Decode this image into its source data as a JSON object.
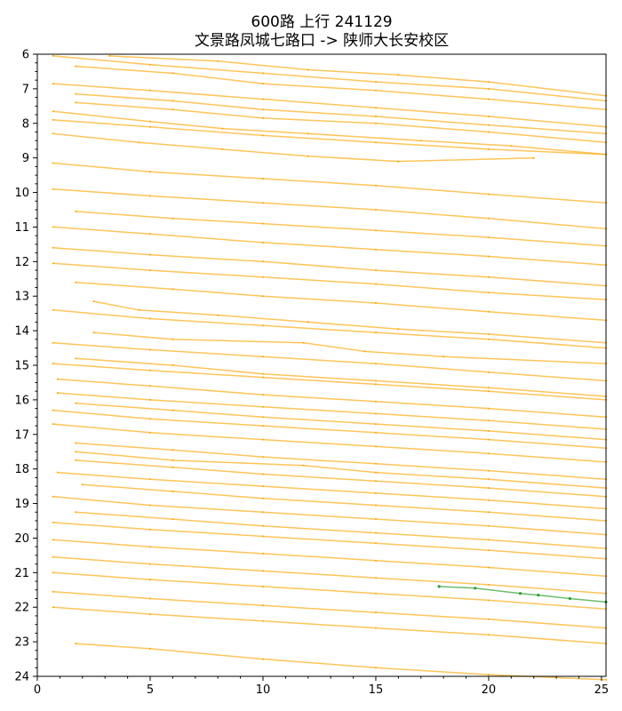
{
  "chart_data": {
    "type": "line",
    "title": "600路 上行 241129",
    "subtitle": "文景路凤城七路口 -> 陕师大长安校区",
    "xlabel": "",
    "ylabel": "",
    "xlim": [
      0,
      25.2
    ],
    "ylim": [
      24,
      6
    ],
    "y_inverted": true,
    "grid": false,
    "legend": "none",
    "x_ticks": [
      0,
      5,
      10,
      15,
      20,
      25
    ],
    "y_ticks": [
      6,
      7,
      8,
      9,
      10,
      11,
      12,
      13,
      14,
      15,
      16,
      17,
      18,
      19,
      20,
      21,
      22,
      23,
      24
    ],
    "colors": {
      "trips": "#ffa500",
      "highlight": "#2ca02c"
    },
    "series": [
      {
        "values": [
          [
            0.7,
            6.05
          ],
          [
            5,
            6.3
          ],
          [
            10,
            6.55
          ],
          [
            15,
            6.8
          ],
          [
            20,
            7.0
          ],
          [
            25.2,
            7.35
          ]
        ]
      },
      {
        "values": [
          [
            3.2,
            6.05
          ],
          [
            8,
            6.2
          ],
          [
            12,
            6.45
          ],
          [
            16,
            6.6
          ],
          [
            20,
            6.8
          ],
          [
            25.2,
            7.2
          ]
        ]
      },
      {
        "values": [
          [
            1.7,
            6.35
          ],
          [
            6,
            6.55
          ],
          [
            10,
            6.85
          ],
          [
            15,
            7.05
          ],
          [
            20,
            7.3
          ],
          [
            25.2,
            7.6
          ]
        ]
      },
      {
        "values": [
          [
            0.7,
            6.85
          ],
          [
            5,
            7.05
          ],
          [
            10,
            7.3
          ],
          [
            15,
            7.55
          ],
          [
            20,
            7.8
          ],
          [
            25.2,
            8.1
          ]
        ]
      },
      {
        "values": [
          [
            1.7,
            7.15
          ],
          [
            6,
            7.35
          ],
          [
            10,
            7.6
          ],
          [
            15,
            7.8
          ],
          [
            20,
            8.05
          ],
          [
            25.2,
            8.3
          ]
        ]
      },
      {
        "values": [
          [
            1.7,
            7.4
          ],
          [
            6,
            7.6
          ],
          [
            10,
            7.85
          ],
          [
            15,
            8.0
          ],
          [
            20,
            8.25
          ],
          [
            25.2,
            8.55
          ]
        ]
      },
      {
        "values": [
          [
            0.7,
            7.65
          ],
          [
            5,
            7.95
          ],
          [
            8.2,
            8.15
          ],
          [
            12,
            8.3
          ],
          [
            17,
            8.5
          ],
          [
            21,
            8.65
          ],
          [
            25.2,
            8.9
          ]
        ]
      },
      {
        "values": [
          [
            0.7,
            7.9
          ],
          [
            5,
            8.1
          ],
          [
            10,
            8.35
          ],
          [
            15,
            8.55
          ],
          [
            20,
            8.75
          ],
          [
            25.2,
            8.9
          ]
        ]
      },
      {
        "values": [
          [
            0.7,
            8.3
          ],
          [
            4.5,
            8.55
          ],
          [
            8.2,
            8.75
          ],
          [
            12,
            8.95
          ],
          [
            16,
            9.1
          ],
          [
            22,
            9.0
          ]
        ]
      },
      {
        "values": [
          [
            0.7,
            9.15
          ],
          [
            5,
            9.4
          ],
          [
            10,
            9.6
          ],
          [
            15,
            9.8
          ],
          [
            20,
            10.05
          ],
          [
            25.2,
            10.3
          ]
        ]
      },
      {
        "values": [
          [
            0.7,
            9.9
          ],
          [
            5,
            10.1
          ],
          [
            10,
            10.3
          ],
          [
            15,
            10.5
          ],
          [
            20,
            10.75
          ],
          [
            25.2,
            11.05
          ]
        ]
      },
      {
        "values": [
          [
            1.7,
            10.55
          ],
          [
            6,
            10.75
          ],
          [
            10,
            10.9
          ],
          [
            15,
            11.1
          ],
          [
            20,
            11.3
          ],
          [
            25.2,
            11.55
          ]
        ]
      },
      {
        "values": [
          [
            0.7,
            11.0
          ],
          [
            5,
            11.2
          ],
          [
            10,
            11.45
          ],
          [
            15,
            11.65
          ],
          [
            20,
            11.85
          ],
          [
            25.2,
            12.1
          ]
        ]
      },
      {
        "values": [
          [
            0.7,
            11.6
          ],
          [
            5,
            11.8
          ],
          [
            10,
            12.0
          ],
          [
            15,
            12.25
          ],
          [
            20,
            12.45
          ],
          [
            25.2,
            12.7
          ]
        ]
      },
      {
        "values": [
          [
            0.7,
            12.05
          ],
          [
            5,
            12.25
          ],
          [
            10,
            12.45
          ],
          [
            15,
            12.65
          ],
          [
            20,
            12.9
          ],
          [
            25.2,
            13.1
          ]
        ]
      },
      {
        "values": [
          [
            1.7,
            12.6
          ],
          [
            6,
            12.8
          ],
          [
            10,
            13.0
          ],
          [
            15,
            13.2
          ],
          [
            20,
            13.45
          ],
          [
            25.2,
            13.7
          ]
        ]
      },
      {
        "values": [
          [
            2.5,
            13.15
          ],
          [
            4.5,
            13.4
          ],
          [
            8,
            13.55
          ],
          [
            12,
            13.75
          ],
          [
            16,
            13.95
          ],
          [
            20,
            14.1
          ],
          [
            25.2,
            14.35
          ]
        ]
      },
      {
        "values": [
          [
            0.7,
            13.4
          ],
          [
            5,
            13.65
          ],
          [
            10,
            13.85
          ],
          [
            15,
            14.05
          ],
          [
            20,
            14.25
          ],
          [
            25.2,
            14.5
          ]
        ]
      },
      {
        "values": [
          [
            2.5,
            14.05
          ],
          [
            6,
            14.25
          ],
          [
            11.8,
            14.35
          ],
          [
            14.5,
            14.6
          ],
          [
            18,
            14.75
          ],
          [
            25.2,
            14.95
          ]
        ]
      },
      {
        "values": [
          [
            0.7,
            14.35
          ],
          [
            5,
            14.55
          ],
          [
            10,
            14.75
          ],
          [
            15,
            14.95
          ],
          [
            20,
            15.2
          ],
          [
            25.2,
            15.45
          ]
        ]
      },
      {
        "values": [
          [
            1.7,
            14.8
          ],
          [
            6,
            15.0
          ],
          [
            10,
            15.25
          ],
          [
            15,
            15.45
          ],
          [
            20,
            15.65
          ],
          [
            25.2,
            15.9
          ]
        ]
      },
      {
        "values": [
          [
            0.7,
            14.95
          ],
          [
            5,
            15.15
          ],
          [
            10,
            15.35
          ],
          [
            15,
            15.55
          ],
          [
            20,
            15.75
          ],
          [
            25.2,
            16.0
          ]
        ]
      },
      {
        "values": [
          [
            0.9,
            15.4
          ],
          [
            5,
            15.6
          ],
          [
            10,
            15.85
          ],
          [
            15,
            16.05
          ],
          [
            20,
            16.25
          ],
          [
            25.2,
            16.5
          ]
        ]
      },
      {
        "values": [
          [
            0.9,
            15.8
          ],
          [
            5,
            16.0
          ],
          [
            10,
            16.2
          ],
          [
            15,
            16.4
          ],
          [
            20,
            16.6
          ],
          [
            25.2,
            16.85
          ]
        ]
      },
      {
        "values": [
          [
            1.7,
            16.1
          ],
          [
            6,
            16.3
          ],
          [
            10,
            16.5
          ],
          [
            15,
            16.7
          ],
          [
            20,
            16.9
          ],
          [
            25.2,
            17.15
          ]
        ]
      },
      {
        "values": [
          [
            0.7,
            16.3
          ],
          [
            5,
            16.55
          ],
          [
            10,
            16.75
          ],
          [
            15,
            16.95
          ],
          [
            20,
            17.15
          ],
          [
            25.2,
            17.4
          ]
        ]
      },
      {
        "values": [
          [
            0.7,
            16.7
          ],
          [
            5,
            16.95
          ],
          [
            10,
            17.15
          ],
          [
            15,
            17.35
          ],
          [
            20,
            17.55
          ],
          [
            25.2,
            17.8
          ]
        ]
      },
      {
        "values": [
          [
            1.7,
            17.25
          ],
          [
            6,
            17.45
          ],
          [
            10,
            17.65
          ],
          [
            15,
            17.85
          ],
          [
            20,
            18.05
          ],
          [
            25.2,
            18.3
          ]
        ]
      },
      {
        "values": [
          [
            1.7,
            17.5
          ],
          [
            6,
            17.75
          ],
          [
            11.8,
            17.9
          ],
          [
            15,
            18.1
          ],
          [
            20,
            18.3
          ],
          [
            25.2,
            18.55
          ]
        ]
      },
      {
        "values": [
          [
            1.7,
            17.75
          ],
          [
            6,
            17.95
          ],
          [
            10,
            18.15
          ],
          [
            15,
            18.35
          ],
          [
            20,
            18.55
          ],
          [
            25.2,
            18.8
          ]
        ]
      },
      {
        "values": [
          [
            0.9,
            18.1
          ],
          [
            5,
            18.3
          ],
          [
            10,
            18.5
          ],
          [
            15,
            18.7
          ],
          [
            20,
            18.9
          ],
          [
            25.2,
            19.15
          ]
        ]
      },
      {
        "values": [
          [
            2.0,
            18.45
          ],
          [
            6,
            18.65
          ],
          [
            10,
            18.85
          ],
          [
            15,
            19.05
          ],
          [
            20,
            19.25
          ],
          [
            25.2,
            19.5
          ]
        ]
      },
      {
        "values": [
          [
            0.7,
            18.8
          ],
          [
            5,
            19.05
          ],
          [
            10,
            19.25
          ],
          [
            15,
            19.45
          ],
          [
            20,
            19.65
          ],
          [
            25.2,
            19.9
          ]
        ]
      },
      {
        "values": [
          [
            1.7,
            19.25
          ],
          [
            6,
            19.45
          ],
          [
            10,
            19.65
          ],
          [
            15,
            19.85
          ],
          [
            20,
            20.05
          ],
          [
            25.2,
            20.3
          ]
        ]
      },
      {
        "values": [
          [
            0.7,
            19.55
          ],
          [
            5,
            19.75
          ],
          [
            10,
            19.95
          ],
          [
            15,
            20.15
          ],
          [
            20,
            20.35
          ],
          [
            25.2,
            20.6
          ]
        ]
      },
      {
        "values": [
          [
            0.7,
            20.05
          ],
          [
            5,
            20.25
          ],
          [
            10,
            20.45
          ],
          [
            15,
            20.65
          ],
          [
            20,
            20.85
          ],
          [
            25.2,
            21.1
          ]
        ]
      },
      {
        "values": [
          [
            0.7,
            20.55
          ],
          [
            5,
            20.75
          ],
          [
            10,
            20.95
          ],
          [
            15,
            21.15
          ],
          [
            20,
            21.35
          ],
          [
            25.2,
            21.6
          ]
        ]
      },
      {
        "values": [
          [
            0.7,
            21.0
          ],
          [
            5,
            21.2
          ],
          [
            10,
            21.4
          ],
          [
            15,
            21.6
          ],
          [
            20,
            21.8
          ],
          [
            25.2,
            22.05
          ]
        ]
      },
      {
        "values": [
          [
            0.7,
            21.55
          ],
          [
            5,
            21.75
          ],
          [
            10,
            21.95
          ],
          [
            15,
            22.15
          ],
          [
            20,
            22.35
          ],
          [
            25.2,
            22.6
          ]
        ]
      },
      {
        "values": [
          [
            0.7,
            22.0
          ],
          [
            5,
            22.2
          ],
          [
            10,
            22.4
          ],
          [
            15,
            22.6
          ],
          [
            20,
            22.8
          ],
          [
            25.2,
            23.05
          ]
        ]
      },
      {
        "values": [
          [
            1.7,
            23.05
          ],
          [
            5,
            23.2
          ],
          [
            10,
            23.5
          ],
          [
            15,
            23.75
          ],
          [
            20,
            23.95
          ],
          [
            25.2,
            24.1
          ]
        ]
      },
      {
        "values": [
          [
            17.8,
            21.4
          ],
          [
            19.4,
            21.45
          ],
          [
            21.4,
            21.6
          ],
          [
            22.2,
            21.65
          ],
          [
            23.6,
            21.75
          ],
          [
            25.2,
            21.85
          ]
        ],
        "highlight": true
      }
    ]
  }
}
